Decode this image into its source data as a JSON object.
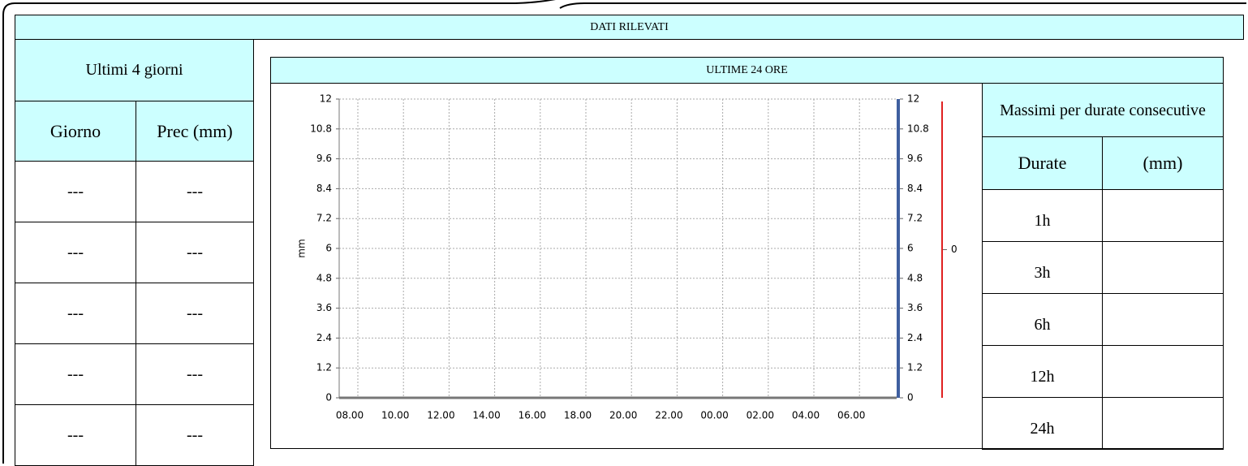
{
  "header": {
    "title": "DATI RILEVATI"
  },
  "left_table": {
    "title": "Ultimi 4 giorni",
    "columns": [
      "Giorno",
      "Prec (mm)"
    ],
    "rows": [
      [
        "---",
        "---"
      ],
      [
        "---",
        "---"
      ],
      [
        "---",
        "---"
      ],
      [
        "---",
        "---"
      ],
      [
        "---",
        "---"
      ]
    ]
  },
  "panel": {
    "title": "ULTIME 24 ORE"
  },
  "right_table": {
    "title": "Massimi per durate consecutive",
    "columns": [
      "Durate",
      "(mm)"
    ],
    "rows": [
      [
        "1h"
      ],
      [
        "3h"
      ],
      [
        "6h"
      ],
      [
        "12h"
      ],
      [
        "24h"
      ]
    ]
  },
  "chart_data": {
    "type": "line",
    "y_label": "mm",
    "categories": [
      "08.00",
      "10.00",
      "12.00",
      "14.00",
      "16.00",
      "18.00",
      "20.00",
      "22.00",
      "00.00",
      "02.00",
      "04.00",
      "06.00"
    ],
    "ylim": [
      0,
      12
    ],
    "yticks": [
      0,
      1.2,
      2.4,
      3.6,
      4.8,
      6,
      7.2,
      8.4,
      9.6,
      10.8,
      12
    ],
    "y2lim": [
      0,
      12
    ],
    "y2ticks": [
      0,
      1.2,
      2.4,
      3.6,
      4.8,
      6,
      7.2,
      8.4,
      9.6,
      10.8,
      12
    ],
    "y2_color": "#3f5f9f",
    "y3ticks": [
      0
    ],
    "y3_color": "#e02020",
    "grid": true
  }
}
